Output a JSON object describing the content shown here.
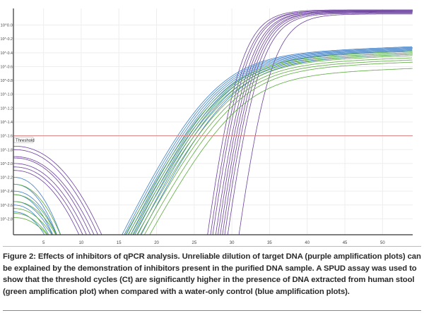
{
  "chart_data": {
    "type": "line",
    "title": "",
    "xlabel": "",
    "ylabel": "",
    "y_scale": "log10",
    "xlim": [
      1,
      54
    ],
    "ylim": [
      -3.03,
      0.24
    ],
    "x_ticks": [
      5,
      10,
      15,
      20,
      25,
      30,
      35,
      40,
      45,
      50
    ],
    "y_ticks": [
      0.0,
      -0.2,
      -0.4,
      -0.6,
      -0.8,
      -1.0,
      -1.2,
      -1.4,
      -1.6,
      -1.8,
      -2.0,
      -2.2,
      -2.4,
      -2.6,
      -2.8
    ],
    "y_tick_labels": [
      "10^0.0",
      "10^-0.2",
      "10^-0.4",
      "10^-0.6",
      "10^-0.8",
      "10^-1.0",
      "10^-1.2",
      "10^-1.4",
      "10^-1.6",
      "10^-1.8",
      "10^-2.0",
      "10^-2.2",
      "10^-2.4",
      "10^-2.6",
      "10^-2.8"
    ],
    "threshold": {
      "label": "Threshold",
      "value": -1.6,
      "color": "#d98080"
    },
    "grid": true,
    "series": [
      {
        "name": "purple (target DNA dilution)",
        "color": "#6a3f9e",
        "plateau": [
          0.22,
          0.21,
          0.21,
          0.2,
          0.2,
          0.19,
          0.19,
          0.18,
          0.17,
          0.16
        ],
        "ct": [
          28.9,
          29.3,
          29.6,
          30.0,
          30.3,
          30.6,
          30.9,
          31.2,
          31.6,
          33.1
        ],
        "slope": 0.9,
        "k": 2.0,
        "early_start": [
          -1.75,
          -1.8,
          -1.9,
          -1.92,
          -2.0,
          -2.05,
          -2.1
        ],
        "early_end": [
          13,
          12.5,
          12,
          11.5,
          11,
          10.5,
          10
        ]
      },
      {
        "name": "blue (water-only control)",
        "color": "#3a7fc8",
        "plateau": [
          -0.42,
          -0.43,
          -0.44,
          -0.45,
          -0.46,
          -0.47,
          -0.48,
          -0.5,
          -0.52
        ],
        "ct": [
          22.7,
          23.0,
          23.3,
          23.6,
          23.9,
          24.2,
          24.5,
          24.9,
          25.4
        ],
        "slope": 0.22,
        "k": 4,
        "early_start": [
          -2.2,
          -2.3,
          -2.4,
          -2.45,
          -2.55,
          -2.6,
          -2.7
        ],
        "early_end": [
          7.5,
          7,
          7,
          6.5,
          6.5,
          6,
          5.5
        ]
      },
      {
        "name": "green (human stool DNA)",
        "color": "#5aaa3c",
        "plateau": [
          -0.48,
          -0.5,
          -0.52,
          -0.54,
          -0.57,
          -0.6,
          -0.63,
          -0.72
        ],
        "ct": [
          23.7,
          24.1,
          24.5,
          24.9,
          25.4,
          25.9,
          26.5,
          27.4
        ],
        "slope": 0.2,
        "k": 4,
        "early_start": [
          -2.3,
          -2.45,
          -2.55,
          -2.65,
          -2.72,
          -2.78
        ],
        "early_end": [
          7.5,
          7,
          7,
          6.5,
          6,
          6
        ]
      }
    ]
  },
  "caption": "Figure 2: Effects of inhibitors of qPCR analysis. Unreliable dilution of target DNA (purple amplification plots) can be explained by the demonstration of inhibitors present in the purified DNA sample. A SPUD assay was used to show that the threshold cycles (Ct) are significantly higher in the presence of DNA extracted from human stool (green amplification plot) when compared with a water-only control (blue amplification plots)."
}
